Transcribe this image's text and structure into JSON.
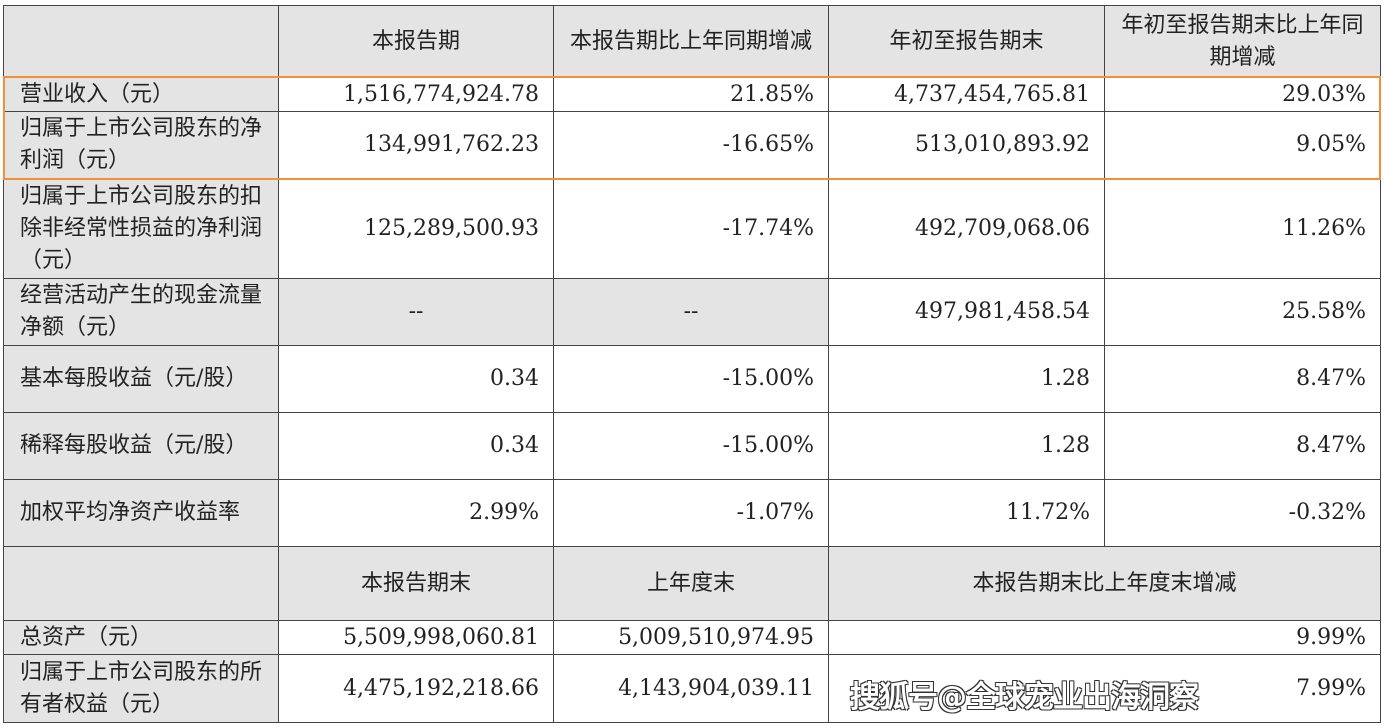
{
  "header": [
    "",
    "本报告期",
    "本报告期比上年同期增减",
    "年初至报告期末",
    "年初至报告期末比上年同期增减"
  ],
  "rows": [
    {
      "label": "营业收入（元）",
      "values": [
        "1,516,774,924.78",
        "21.85%",
        "4,737,454,765.81",
        "29.03%"
      ],
      "highlighted": true
    },
    {
      "label": "归属于上市公司股东的净利润（元）",
      "values": [
        "134,991,762.23",
        "-16.65%",
        "513,010,893.92",
        "9.05%"
      ],
      "highlighted": true
    },
    {
      "label": "归属于上市公司股东的扣除非经常性损益的净利润（元）",
      "values": [
        "125,289,500.93",
        "-17.74%",
        "492,709,068.06",
        "11.26%"
      ]
    },
    {
      "label": "经营活动产生的现金流量净额（元）",
      "values": [
        "--",
        "--",
        "497,981,458.54",
        "25.58%"
      ]
    },
    {
      "label": "基本每股收益（元/股）",
      "values": [
        "0.34",
        "-15.00%",
        "1.28",
        "8.47%"
      ]
    },
    {
      "label": "稀释每股收益（元/股）",
      "values": [
        "0.34",
        "-15.00%",
        "1.28",
        "8.47%"
      ]
    },
    {
      "label": "加权平均净资产收益率",
      "values": [
        "2.99%",
        "-1.07%",
        "11.72%",
        "-0.32%"
      ]
    }
  ],
  "header2": [
    "",
    "本报告期末",
    "上年度末",
    "本报告期末比上年度末增减"
  ],
  "rows2": [
    {
      "label": "总资产（元）",
      "values": [
        "5,509,998,060.81",
        "5,009,510,974.95",
        "9.99%"
      ]
    },
    {
      "label": "归属于上市公司股东的所有者权益（元）",
      "values": [
        "4,475,192,218.66",
        "4,143,904,039.11",
        "7.99%"
      ]
    }
  ],
  "highlight_color": "#f0913a",
  "watermark": "搜狐号@全球宠业出海洞察"
}
